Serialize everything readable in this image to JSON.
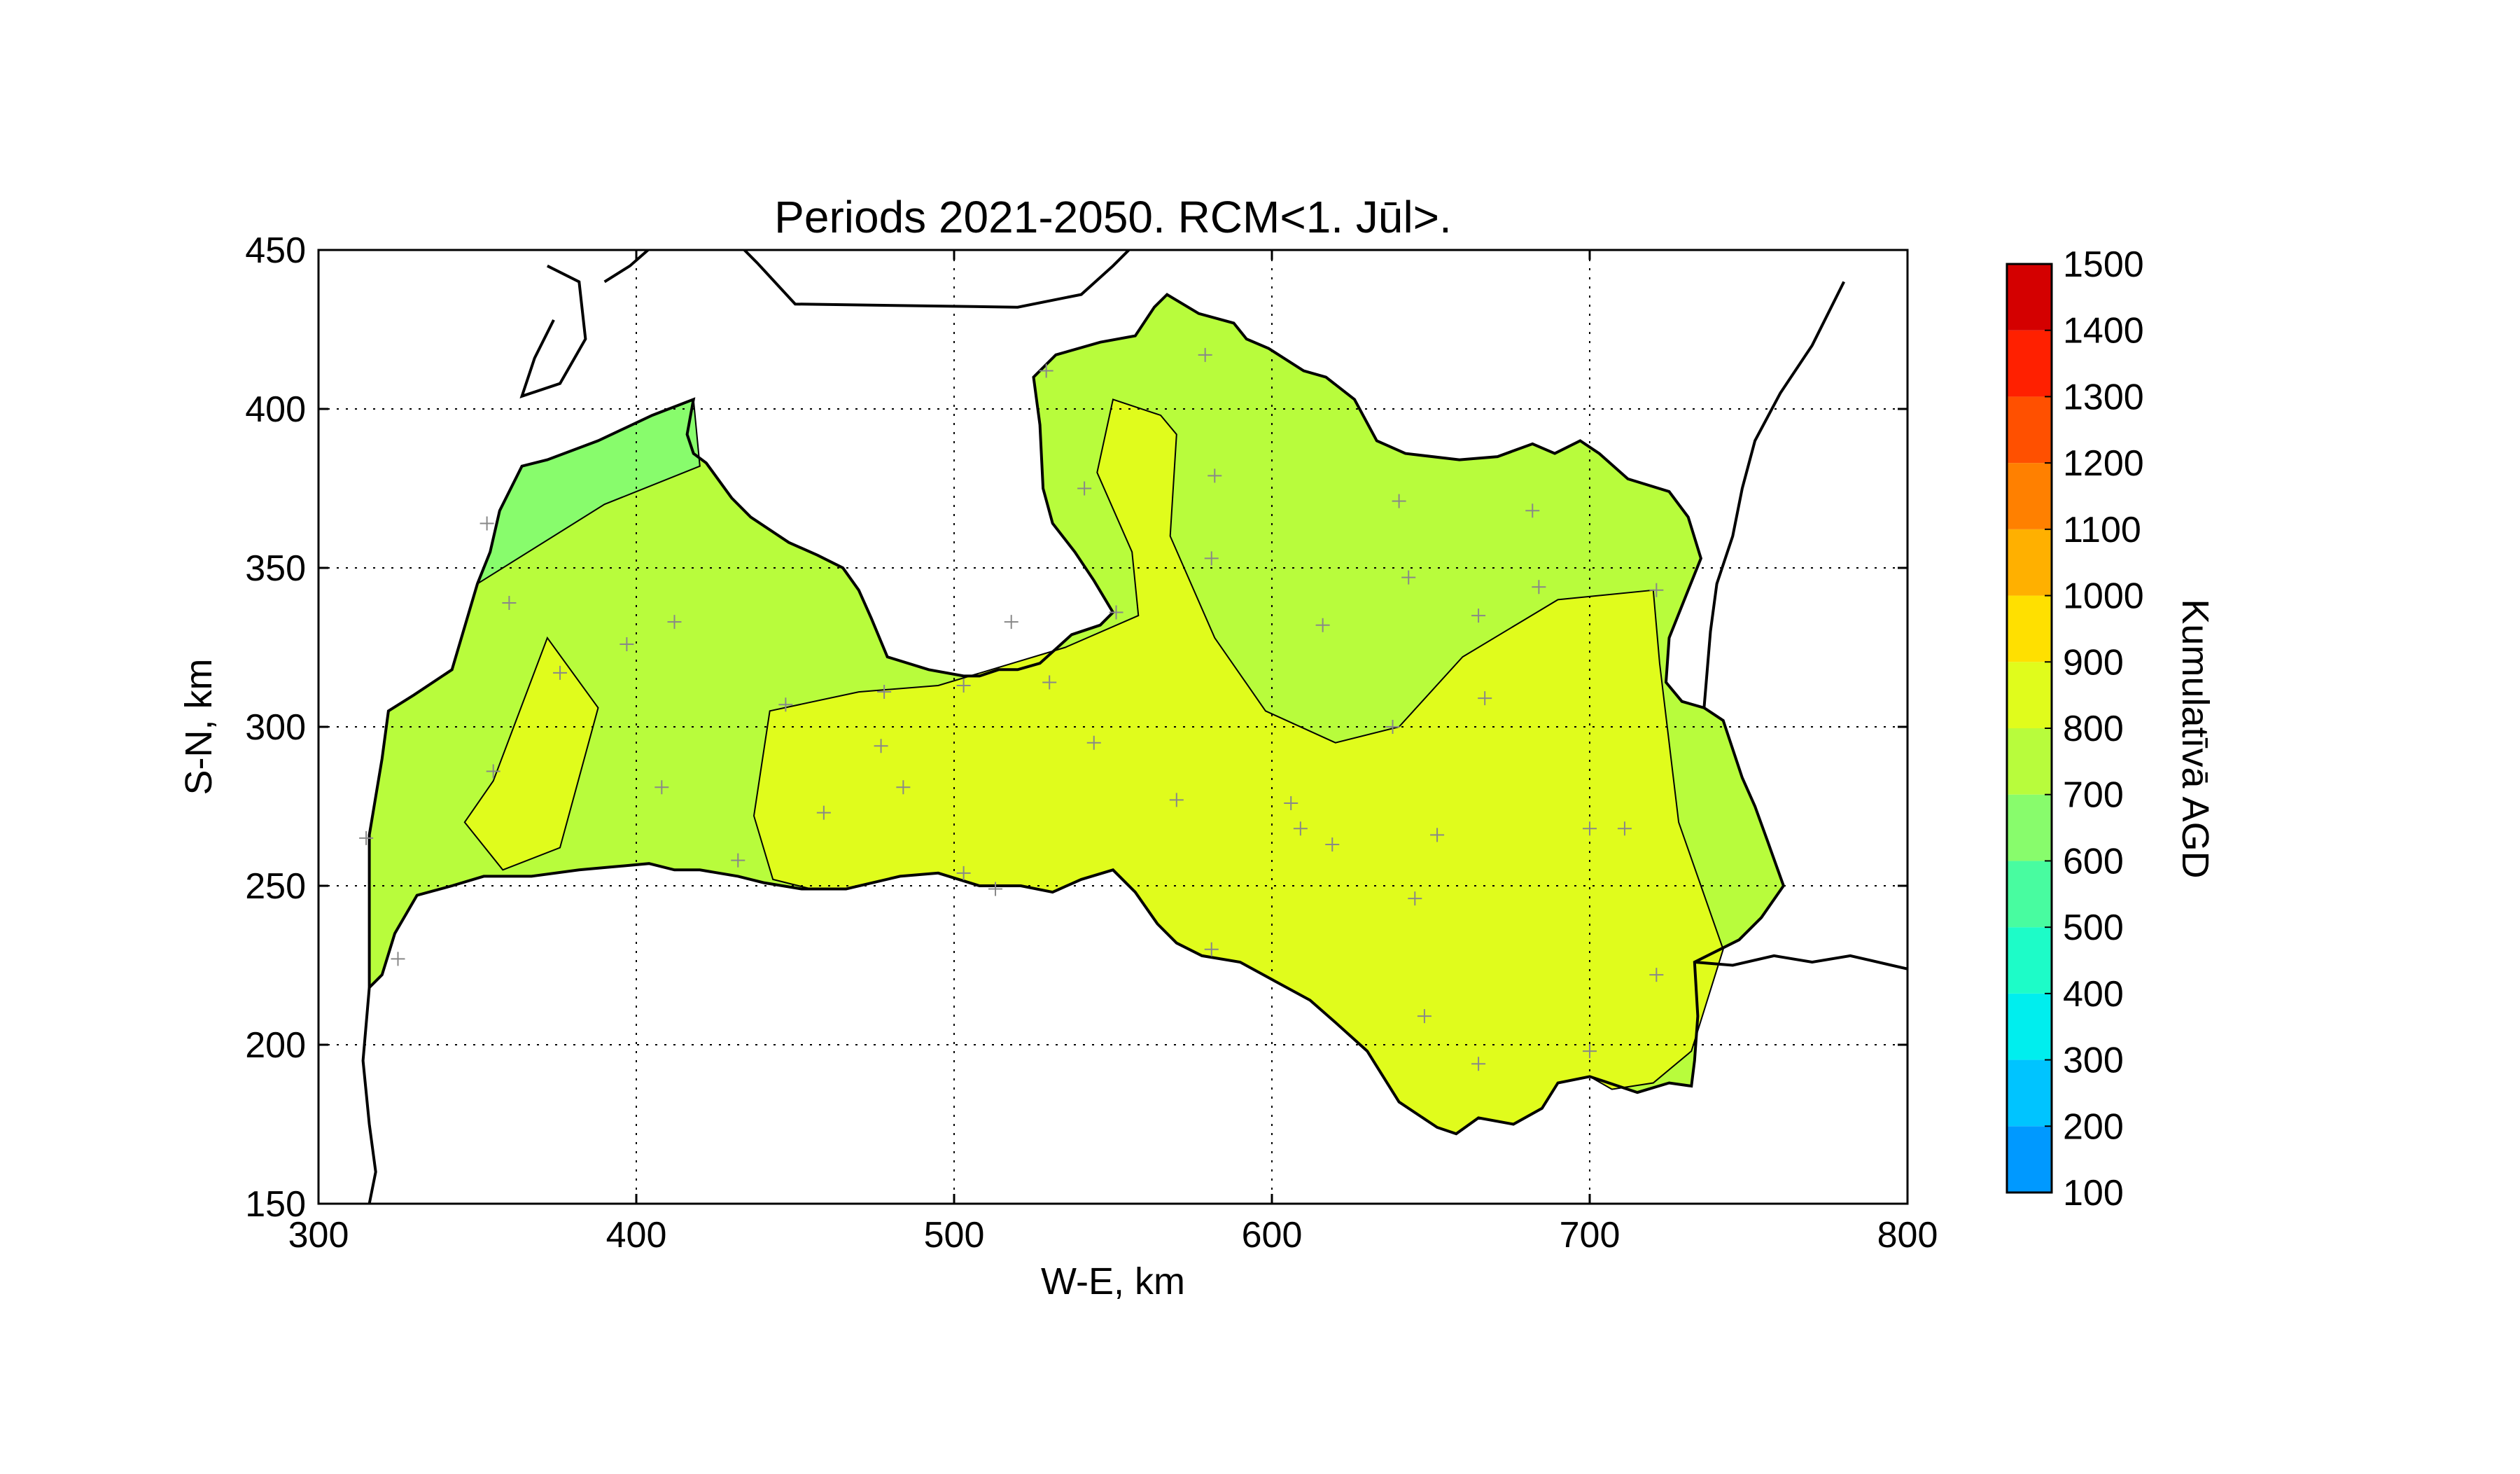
{
  "chart_data": {
    "type": "heatmap",
    "title": "Periods 2021-2050. RCM<1. Jūl>.",
    "xlabel": "W-E, km",
    "ylabel": "S-N, km",
    "xlim": [
      300,
      800
    ],
    "ylim": [
      150,
      450
    ],
    "xticks": [
      300,
      400,
      500,
      600,
      700,
      800
    ],
    "yticks": [
      150,
      200,
      250,
      300,
      350,
      400,
      450
    ],
    "grid": true,
    "colorbar": {
      "label": "Kumulatīvā AGD",
      "ticks": [
        100,
        200,
        300,
        400,
        500,
        600,
        700,
        800,
        900,
        1000,
        1100,
        1200,
        1300,
        1400,
        1500
      ],
      "levels": [
        {
          "from": 100,
          "to": 200,
          "color": "#0099ff"
        },
        {
          "from": 200,
          "to": 300,
          "color": "#00c4ff"
        },
        {
          "from": 300,
          "to": 400,
          "color": "#00eeee"
        },
        {
          "from": 400,
          "to": 500,
          "color": "#1dfcc8"
        },
        {
          "from": 500,
          "to": 600,
          "color": "#48fca0"
        },
        {
          "from": 600,
          "to": 700,
          "color": "#88fc6c"
        },
        {
          "from": 700,
          "to": 800,
          "color": "#b8fc3c"
        },
        {
          "from": 800,
          "to": 900,
          "color": "#e0fc1c"
        },
        {
          "from": 900,
          "to": 1000,
          "color": "#ffe000"
        },
        {
          "from": 1000,
          "to": 1100,
          "color": "#ffb000"
        },
        {
          "from": 1100,
          "to": 1200,
          "color": "#ff8000"
        },
        {
          "from": 1200,
          "to": 1300,
          "color": "#ff5000"
        },
        {
          "from": 1300,
          "to": 1400,
          "color": "#ff2000"
        },
        {
          "from": 1400,
          "to": 1500,
          "color": "#d40000"
        }
      ]
    },
    "regions": [
      {
        "level": "700-800",
        "color": "#b8fc3c",
        "area": "background"
      },
      {
        "level": "600-700",
        "color": "#88fc6c",
        "area": "north-west coast"
      },
      {
        "level": "800-900",
        "color": "#e0fc1c",
        "area": "west patch"
      },
      {
        "level": "800-900",
        "color": "#e0fc1c",
        "area": "central and south-east"
      }
    ],
    "stations": [
      [
        353,
        364
      ],
      [
        360,
        339
      ],
      [
        376,
        317
      ],
      [
        355,
        286
      ],
      [
        397,
        326
      ],
      [
        412,
        333
      ],
      [
        408,
        281
      ],
      [
        432,
        258
      ],
      [
        447,
        307
      ],
      [
        459,
        273
      ],
      [
        477,
        294
      ],
      [
        484,
        281
      ],
      [
        478,
        311
      ],
      [
        503,
        313
      ],
      [
        503,
        254
      ],
      [
        513,
        249
      ],
      [
        518,
        333
      ],
      [
        529,
        412
      ],
      [
        530,
        314
      ],
      [
        544,
        295
      ],
      [
        541,
        375
      ],
      [
        551,
        336
      ],
      [
        570,
        277
      ],
      [
        579,
        417
      ],
      [
        582,
        379
      ],
      [
        581,
        353
      ],
      [
        581,
        230
      ],
      [
        606,
        276
      ],
      [
        609,
        268
      ],
      [
        616,
        332
      ],
      [
        619,
        263
      ],
      [
        640,
        371
      ],
      [
        643,
        347
      ],
      [
        638,
        300
      ],
      [
        645,
        246
      ],
      [
        648,
        209
      ],
      [
        652,
        266
      ],
      [
        665,
        335
      ],
      [
        667,
        309
      ],
      [
        665,
        194
      ],
      [
        682,
        368
      ],
      [
        684,
        344
      ],
      [
        700,
        268
      ],
      [
        711,
        268
      ],
      [
        700,
        198
      ],
      [
        721,
        343
      ],
      [
        721,
        222
      ],
      [
        315,
        265
      ],
      [
        325,
        227
      ]
    ]
  }
}
